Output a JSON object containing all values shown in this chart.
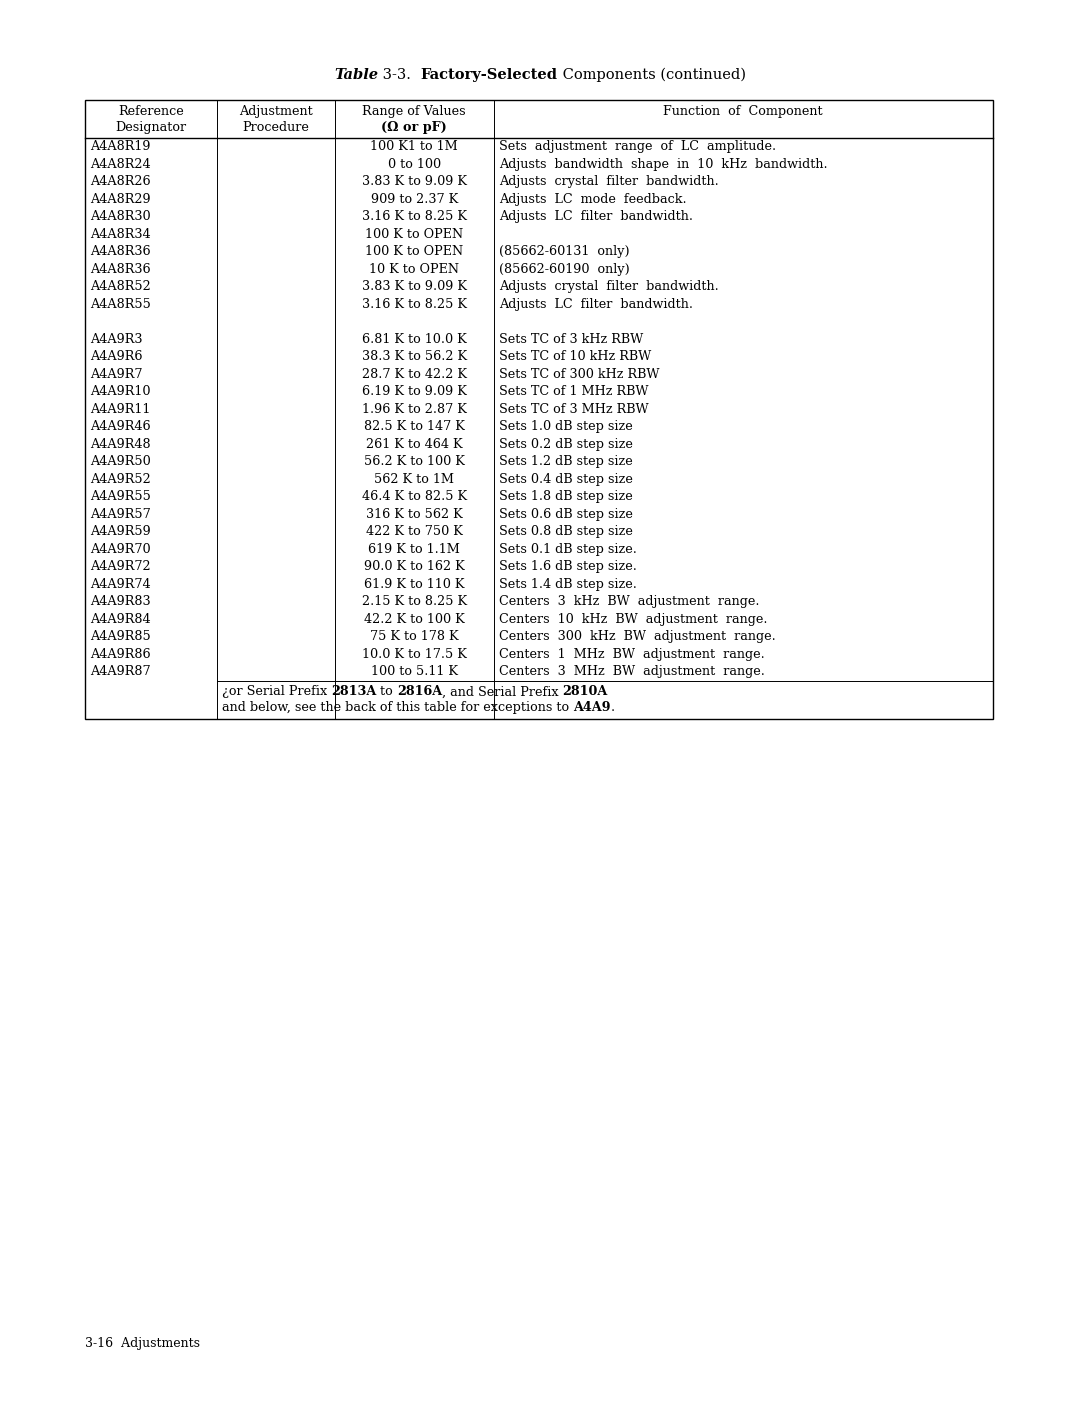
{
  "title_t1": "Table",
  "title_t2": " 3-3.  ",
  "title_t3": "Factory-Selected",
  "title_t4": " Components (continued)",
  "header_row1": [
    "Reference",
    "Adjustment",
    "Range of Values",
    "Function  of  Component"
  ],
  "header_row2": [
    "Designator",
    "Procedure",
    "(Ω or pF)",
    ""
  ],
  "rows": [
    [
      "A4A8R19",
      "",
      "100 K1 to 1M",
      "Sets  adjustment  range  of  LC  amplitude."
    ],
    [
      "A4A8R24",
      "",
      "0 to 100",
      "Adjusts  bandwidth  shape  in  10  kHz  bandwidth."
    ],
    [
      "A4A8R26",
      "",
      "3.83 K to 9.09 K",
      "Adjusts  crystal  filter  bandwidth."
    ],
    [
      "A4A8R29",
      "",
      "909 to 2.37 K",
      "Adjusts  LC  mode  feedback."
    ],
    [
      "A4A8R30",
      "",
      "3.16 K to 8.25 K",
      "Adjusts  LC  filter  bandwidth."
    ],
    [
      "A4A8R34",
      "",
      "100 K to OPEN",
      ""
    ],
    [
      "A4A8R36",
      "",
      "100 K to OPEN",
      "(85662-60131  only)"
    ],
    [
      "A4A8R36",
      "",
      "10 K to OPEN",
      "(85662-60190  only)"
    ],
    [
      "A4A8R52",
      "",
      "3.83 K to 9.09 K",
      "Adjusts  crystal  filter  bandwidth."
    ],
    [
      "A4A8R55",
      "",
      "3.16 K to 8.25 K",
      "Adjusts  LC  filter  bandwidth."
    ],
    [
      "",
      "",
      "",
      ""
    ],
    [
      "A4A9R3",
      "",
      "6.81 K to 10.0 K",
      "Sets TC of 3 kHz RBW"
    ],
    [
      "A4A9R6",
      "",
      "38.3 K to 56.2 K",
      "Sets TC of 10 kHz RBW"
    ],
    [
      "A4A9R7",
      "",
      "28.7 K to 42.2 K",
      "Sets TC of 300 kHz RBW"
    ],
    [
      "A4A9R10",
      "",
      "6.19 K to 9.09 K",
      "Sets TC of 1 MHz RBW"
    ],
    [
      "A4A9R11",
      "",
      "1.96 K to 2.87 K",
      "Sets TC of 3 MHz RBW"
    ],
    [
      "A4A9R46",
      "",
      "82.5 K to 147 K",
      "Sets 1.0 dB step size"
    ],
    [
      "A4A9R48",
      "",
      "261 K to 464 K",
      "Sets 0.2 dB step size"
    ],
    [
      "A4A9R50",
      "",
      "56.2 K to 100 K",
      "Sets 1.2 dB step size"
    ],
    [
      "A4A9R52",
      "",
      "562 K to 1M",
      "Sets 0.4 dB step size"
    ],
    [
      "A4A9R55",
      "",
      "46.4 K to 82.5 K",
      "Sets 1.8 dB step size"
    ],
    [
      "A4A9R57",
      "",
      "316 K to 562 K",
      "Sets 0.6 dB step size"
    ],
    [
      "A4A9R59",
      "",
      "422 K to 750 K",
      "Sets 0.8 dB step size"
    ],
    [
      "A4A9R70",
      "",
      "619 K to 1.1M",
      "Sets 0.1 dB step size."
    ],
    [
      "A4A9R72",
      "",
      "90.0 K to 162 K",
      "Sets 1.6 dB step size."
    ],
    [
      "A4A9R74",
      "",
      "61.9 K to 110 K",
      "Sets 1.4 dB step size."
    ],
    [
      "A4A9R83",
      "",
      "2.15 K to 8.25 K",
      "Centers  3  kHz  BW  adjustment  range."
    ],
    [
      "A4A9R84",
      "",
      "42.2 K to 100 K",
      "Centers  10  kHz  BW  adjustment  range."
    ],
    [
      "A4A9R85",
      "",
      "75 K to 178 K",
      "Centers  300  kHz  BW  adjustment  range."
    ],
    [
      "A4A9R86",
      "",
      "10.0 K to 17.5 K",
      "Centers  1  MHz  BW  adjustment  range."
    ],
    [
      "A4A9R87",
      "",
      "100 to 5.11 K",
      "Centers  3  MHz  BW  adjustment  range."
    ]
  ],
  "footer1_pre": "¿or Serial Prefix ",
  "footer1_b1": "2813A",
  "footer1_mid1": " to ",
  "footer1_b2": "2816A",
  "footer1_mid2": ", and Serial Prefix ",
  "footer1_b3": "2810A",
  "footer2_pre": "and below, see the back of this table for exceptions to ",
  "footer2_b4": "A4A9",
  "footer2_end": ".",
  "page_label": "3-16  Adjustments"
}
